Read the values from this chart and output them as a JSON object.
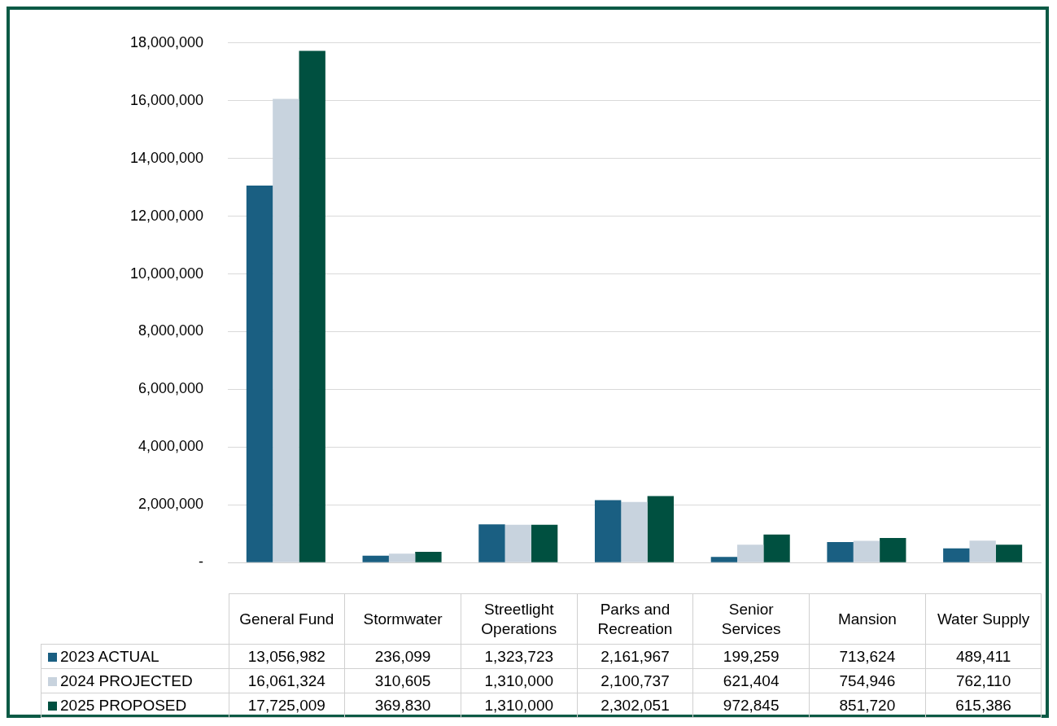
{
  "chart_data": {
    "type": "bar",
    "categories": [
      "General Fund",
      "Stormwater",
      "Streetlight Operations",
      "Parks and Recreation",
      "Senior Services",
      "Mansion",
      "Water Supply"
    ],
    "series": [
      {
        "name": "2023 ACTUAL",
        "color": "#1a5f82",
        "values": [
          13056982,
          236099,
          1323723,
          2161967,
          199259,
          713624,
          489411
        ],
        "value_labels": [
          "13,056,982",
          "236,099",
          "1,323,723",
          "2,161,967",
          "199,259",
          "713,624",
          "489,411"
        ]
      },
      {
        "name": "2024 PROJECTED",
        "color": "#c8d3de",
        "values": [
          16061324,
          310605,
          1310000,
          2100737,
          621404,
          754946,
          762110
        ],
        "value_labels": [
          "16,061,324",
          "310,605",
          "1,310,000",
          "2,100,737",
          "621,404",
          "754,946",
          "762,110"
        ]
      },
      {
        "name": "2025 PROPOSED",
        "color": "#005040",
        "values": [
          17725009,
          369830,
          1310000,
          2302051,
          972845,
          851720,
          615386
        ],
        "value_labels": [
          "17,725,009",
          "369,830",
          "1,310,000",
          "2,302,051",
          "972,845",
          "851,720",
          "615,386"
        ]
      }
    ],
    "ylim": [
      0,
      18000000
    ],
    "yticks": [
      {
        "value": 0,
        "label": "-"
      },
      {
        "value": 2000000,
        "label": "2,000,000"
      },
      {
        "value": 4000000,
        "label": "4,000,000"
      },
      {
        "value": 6000000,
        "label": "6,000,000"
      },
      {
        "value": 8000000,
        "label": "8,000,000"
      },
      {
        "value": 10000000,
        "label": "10,000,000"
      },
      {
        "value": 12000000,
        "label": "12,000,000"
      },
      {
        "value": 14000000,
        "label": "14,000,000"
      },
      {
        "value": 16000000,
        "label": "16,000,000"
      },
      {
        "value": 18000000,
        "label": "18,000,000"
      }
    ],
    "grid": "y",
    "legend": "bottom"
  }
}
